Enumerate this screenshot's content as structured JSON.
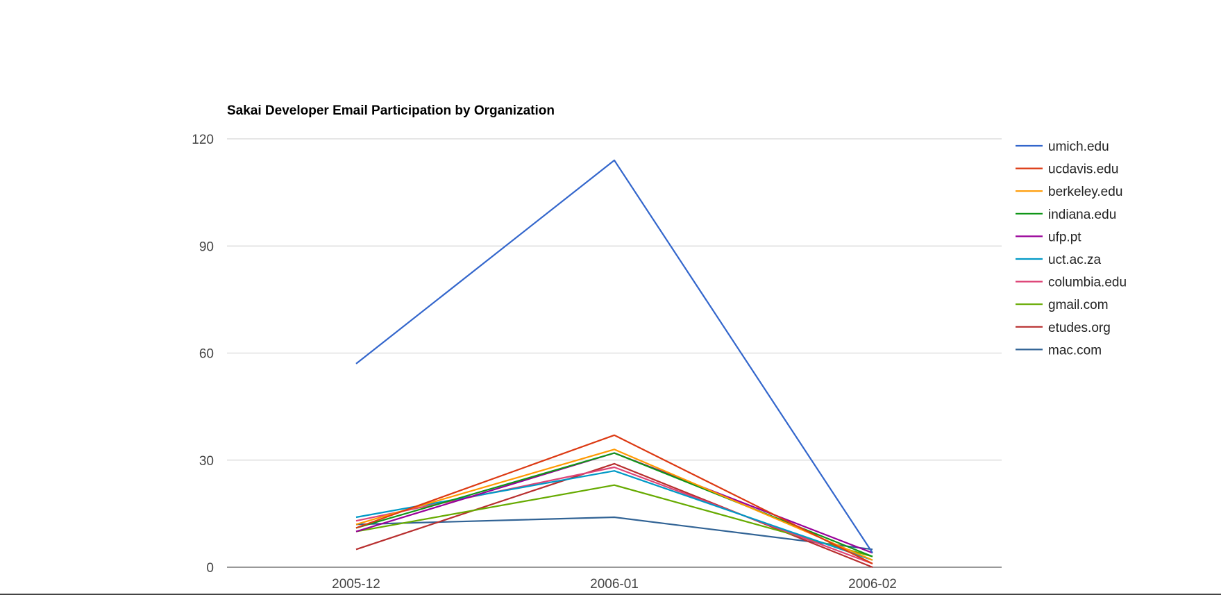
{
  "chart_data": {
    "type": "line",
    "title": "Sakai Developer Email Participation by Organization",
    "xlabel": "",
    "ylabel": "",
    "categories": [
      "2005-12",
      "2006-01",
      "2006-02"
    ],
    "ylim": [
      0,
      120
    ],
    "yticks": [
      0,
      30,
      60,
      90,
      120
    ],
    "grid": true,
    "legend_position": "right",
    "series": [
      {
        "name": "umich.edu",
        "color": "#3366cc",
        "values": [
          57,
          114,
          4
        ]
      },
      {
        "name": "ucdavis.edu",
        "color": "#dc3912",
        "values": [
          11,
          37,
          1
        ]
      },
      {
        "name": "berkeley.edu",
        "color": "#ff9900",
        "values": [
          12,
          33,
          2
        ]
      },
      {
        "name": "indiana.edu",
        "color": "#109618",
        "values": [
          11,
          32,
          3
        ]
      },
      {
        "name": "ufp.pt",
        "color": "#990099",
        "values": [
          10,
          32,
          4
        ]
      },
      {
        "name": "uct.ac.za",
        "color": "#0099c6",
        "values": [
          14,
          27,
          2
        ]
      },
      {
        "name": "columbia.edu",
        "color": "#dd4477",
        "values": [
          13,
          28,
          1
        ]
      },
      {
        "name": "gmail.com",
        "color": "#66aa00",
        "values": [
          10,
          23,
          3
        ]
      },
      {
        "name": "etudes.org",
        "color": "#b82e2e",
        "values": [
          5,
          29,
          0
        ]
      },
      {
        "name": "mac.com",
        "color": "#316395",
        "values": [
          12,
          14,
          5
        ]
      }
    ]
  }
}
